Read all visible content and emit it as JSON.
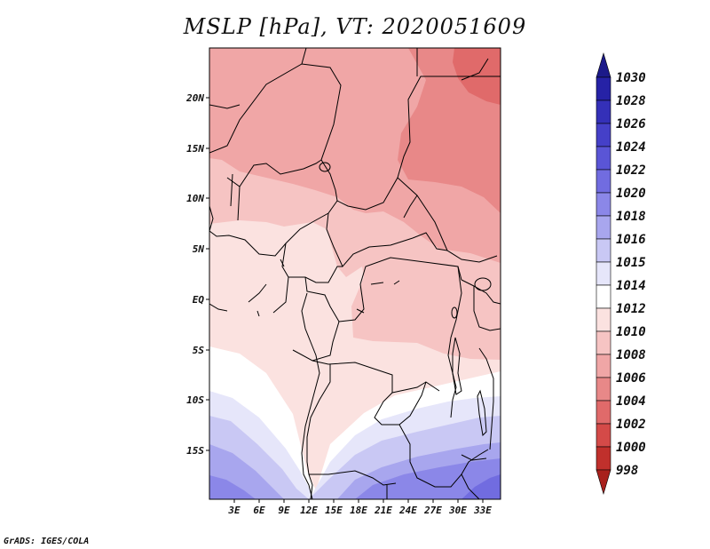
{
  "title": "MSLP [hPa], VT: 2020051609",
  "credit": "GrADS: IGES/COLA",
  "map": {
    "variable": "MSLP",
    "units": "hPa",
    "valid_time": "2020051609",
    "lon_labels": [
      "3E",
      "6E",
      "9E",
      "12E",
      "15E",
      "18E",
      "21E",
      "24E",
      "27E",
      "30E",
      "33E"
    ],
    "lat_labels": [
      "20N",
      "15N",
      "10N",
      "5N",
      "EQ",
      "5S",
      "10S",
      "15S"
    ]
  },
  "colorbar": {
    "levels": [
      "1030",
      "1028",
      "1026",
      "1024",
      "1022",
      "1020",
      "1018",
      "1016",
      "1015",
      "1014",
      "1012",
      "1010",
      "1008",
      "1006",
      "1004",
      "1002",
      "1000",
      "998"
    ],
    "colors": {
      "c1030": "#1c1a8a",
      "c1028": "#2622a6",
      "c1026": "#3430b8",
      "c1024": "#4540c8",
      "c1022": "#5a55d6",
      "c1020": "#716ce0",
      "c1018": "#8b87e8",
      "c1016": "#a8a6ee",
      "c1015": "#c9c8f4",
      "c1014": "#e6e6fa",
      "c1012": "#ffffff",
      "c1010": "#fbe2e0",
      "c1008": "#f6c4c3",
      "c1006": "#f0a6a6",
      "c1004": "#e88888",
      "c1002": "#e06a6a",
      "c1000": "#d44a48",
      "c998": "#c0302c",
      "c996": "#a8201c"
    }
  }
}
